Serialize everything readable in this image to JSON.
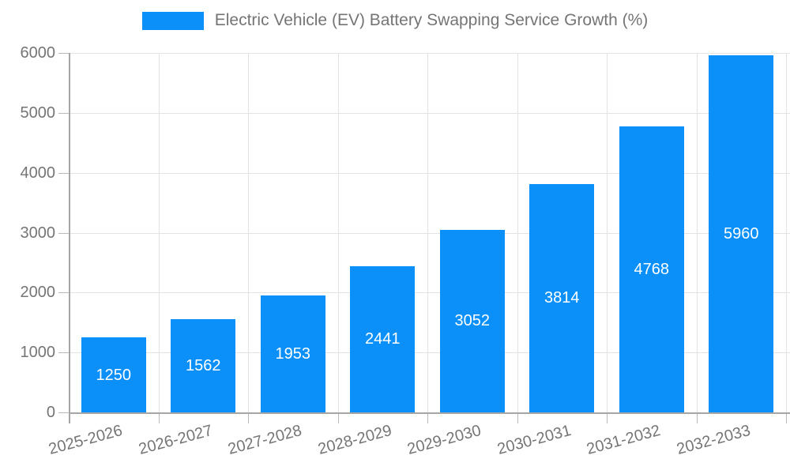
{
  "legend": {
    "label": "Electric Vehicle (EV) Battery Swapping Service Growth (%)",
    "swatch_color": "#0a90f8"
  },
  "chart_data": {
    "type": "bar",
    "title": "",
    "xlabel": "",
    "ylabel": "",
    "categories": [
      "2025-2026",
      "2026-2027",
      "2027-2028",
      "2028-2029",
      "2029-2030",
      "2030-2031",
      "2031-2032",
      "2032-2033"
    ],
    "series": [
      {
        "name": "Electric Vehicle (EV) Battery Swapping Service Growth (%)",
        "values": [
          1250,
          1562,
          1953,
          2441,
          3052,
          3814,
          4768,
          5960
        ]
      }
    ],
    "data_labels": [
      "1250",
      "1562",
      "1953",
      "2441",
      "3052",
      "3814",
      "4768",
      "5960"
    ],
    "ylim": [
      0,
      6000
    ],
    "yticks": [
      0,
      1000,
      2000,
      3000,
      4000,
      5000,
      6000
    ],
    "grid": true,
    "legend_position": "top-center",
    "bar_color": "#0a90f8",
    "data_label_color": "#ffffff",
    "x_tick_rotation_deg": -15
  },
  "colors": {
    "bar": "#0a90f8",
    "axis_text": "#757575",
    "axis_line": "#a6a6a6",
    "gridline": "#e3e3e3",
    "background": "#ffffff"
  }
}
